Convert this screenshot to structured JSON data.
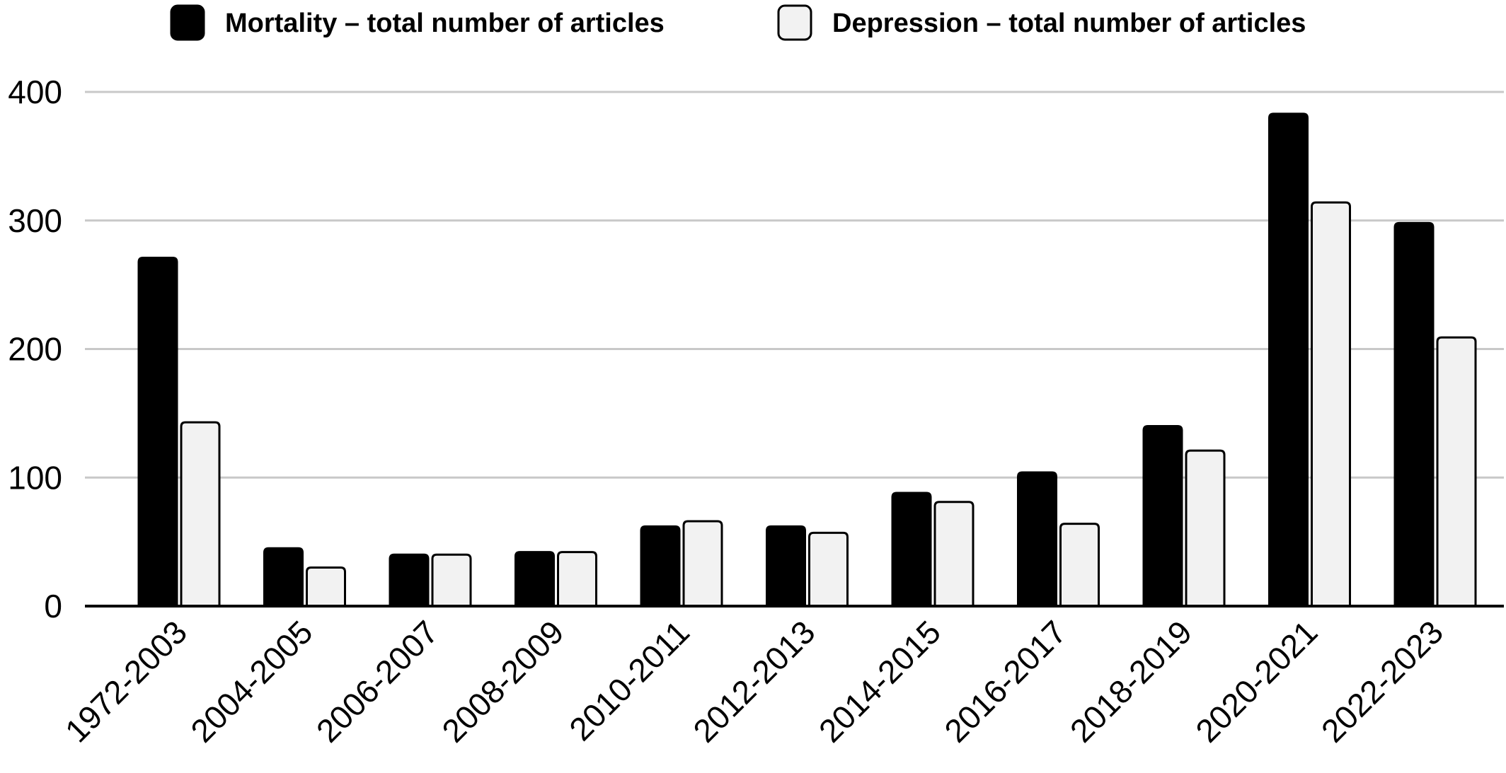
{
  "chart_data": {
    "type": "bar",
    "categories": [
      "1972-2003",
      "2004-2005",
      "2006-2007",
      "2008-2009",
      "2010-2011",
      "2012-2013",
      "2014-2015",
      "2016-2017",
      "2018-2019",
      "2020-2021",
      "2022-2023"
    ],
    "series": [
      {
        "name": "Mortality – total number of articles",
        "color": "#000000",
        "values": [
          271,
          45,
          40,
          42,
          62,
          62,
          88,
          104,
          140,
          383,
          298
        ]
      },
      {
        "name": "Depression – total number of articles",
        "color": "#f2f2f2",
        "values": [
          143,
          30,
          40,
          42,
          66,
          57,
          81,
          64,
          121,
          314,
          209
        ]
      }
    ],
    "title": "",
    "xlabel": "",
    "ylabel": "",
    "ylim": [
      0,
      400
    ],
    "yticks": [
      "0",
      "100",
      "200",
      "300",
      "400"
    ],
    "grid": true,
    "legend_position": "top"
  }
}
